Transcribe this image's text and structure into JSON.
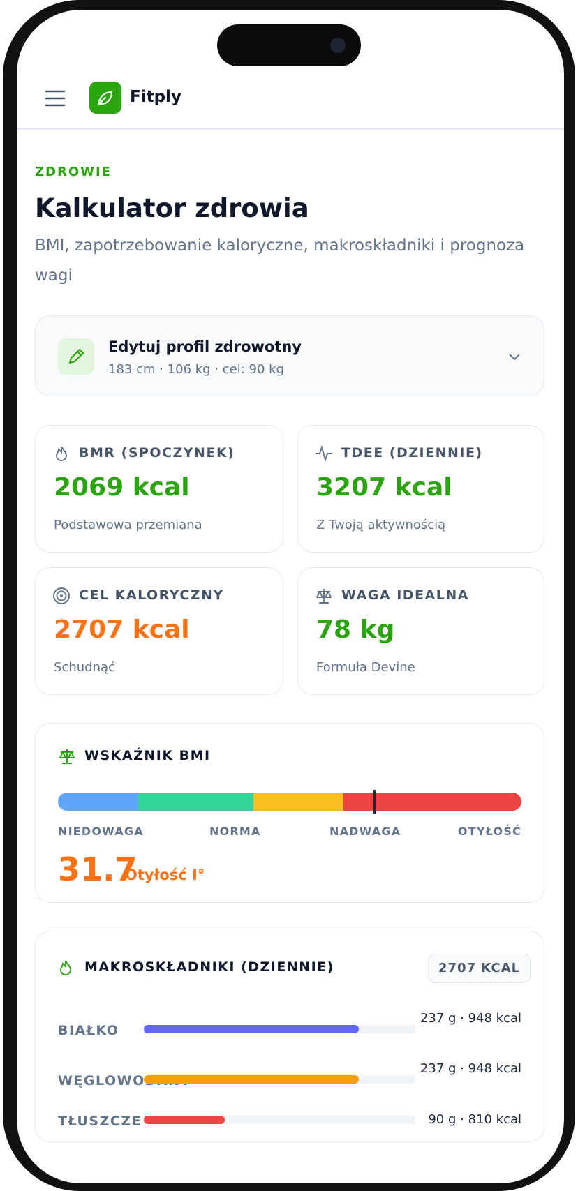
{
  "header": {
    "app_name": "Fitply"
  },
  "page": {
    "eyebrow": "ZDROWIE",
    "title": "Kalkulator zdrowia",
    "subtitle": "BMI, zapotrzebowanie kaloryczne, makroskładniki i prognoza wagi"
  },
  "profile": {
    "title": "Edytuj profil zdrowotny",
    "summary": "183 cm · 106 kg · cel: 90 kg"
  },
  "stats": [
    {
      "label": "BMR (SPOCZYNEK)",
      "value": "2069 kcal",
      "note": "Podstawowa przemiana"
    },
    {
      "label": "TDEE (DZIENNIE)",
      "value": "3207 kcal",
      "note": "Z Twoją aktywnością"
    },
    {
      "label": "CEL KALORYCZNY",
      "value": "2707 kcal",
      "note": "Schudnąć"
    },
    {
      "label": "WAGA IDEALNA",
      "value": "78 kg",
      "note": "Formuła Devine"
    }
  ],
  "bmi": {
    "title": "WSKAŹNIK BMI",
    "scale_labels": [
      "NIEDOWAGA",
      "NORMA",
      "NADWAGA",
      "OTYŁOŚĆ"
    ],
    "value": 31.7,
    "category": "Otyłość I°"
  },
  "macros": {
    "title": "MAKROSKŁADNIKI (DZIENNIE)",
    "total": "2707 KCAL",
    "rows": [
      {
        "name": "BIAŁKO",
        "amount": "237 g · 948 kcal"
      },
      {
        "name": "WĘGLOWODANY",
        "amount": "237 g · 948 kcal"
      },
      {
        "name": "TŁUSZCZE",
        "amount": "90 g · 810 kcal"
      }
    ]
  }
}
